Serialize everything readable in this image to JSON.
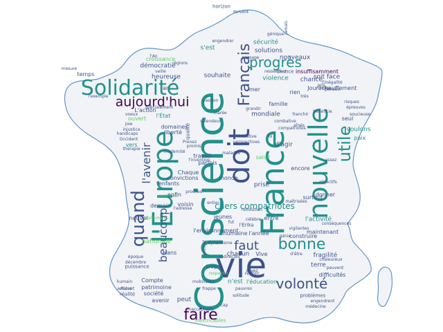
{
  "colors": {
    "background": "#ffffff",
    "map_fill": "#f2f3f6",
    "map_outline": "#5f95c9",
    "palette": [
      "#440154",
      "#3b528b",
      "#21918c",
      "#5ec962",
      "#fde725"
    ]
  },
  "words": [
    {
      "text": "Conscience",
      "color": "#21918c"
    },
    {
      "text": "France",
      "color": "#21918c"
    },
    {
      "text": "vie",
      "color": "#3b528b"
    },
    {
      "text": "doit",
      "color": "#3b528b"
    },
    {
      "text": "l'Europe",
      "color": "#21918c"
    },
    {
      "text": "nouvelle",
      "color": "#21918c"
    },
    {
      "text": "Solidarité",
      "color": "#21918c"
    },
    {
      "text": "quand",
      "color": "#3b528b"
    },
    {
      "text": "Français",
      "color": "#3b528b"
    },
    {
      "text": "utile",
      "color": "#21918c"
    },
    {
      "text": "bonne",
      "color": "#21918c"
    },
    {
      "text": "volonté",
      "color": "#3b528b"
    },
    {
      "text": "faire",
      "color": "#440154"
    },
    {
      "text": "aujourd'hui",
      "color": "#440154"
    },
    {
      "text": "progrès",
      "color": "#21918c"
    },
    {
      "text": "faut",
      "color": "#3b528b"
    },
    {
      "text": "l'avenir",
      "color": "#3b528b"
    },
    {
      "text": "beaucoup",
      "color": "#3b528b"
    },
    {
      "text": "chers compatriotes",
      "color": "#21918c"
    },
    {
      "text": "solutions",
      "color": "#3b528b"
    },
    {
      "text": "démocratie",
      "color": "#3b528b"
    },
    {
      "text": "heureuse",
      "color": "#3b528b"
    },
    {
      "text": "souhaite",
      "color": "#3b528b"
    },
    {
      "text": "sécurité",
      "color": "#21918c"
    },
    {
      "text": "s'est",
      "color": "#21918c"
    },
    {
      "text": "nouveaux",
      "color": "#3b528b"
    },
    {
      "text": "insuffisamment",
      "color": "#440154"
    },
    {
      "text": "violence",
      "color": "#21918c"
    },
    {
      "text": "chance",
      "color": "#3b528b"
    },
    {
      "text": "soit face",
      "color": "#3b528b"
    },
    {
      "text": "réchauffement",
      "color": "#3b528b"
    },
    {
      "text": "mondiale",
      "color": "#3b528b"
    },
    {
      "text": "famille",
      "color": "#3b528b"
    },
    {
      "text": "voulons",
      "color": "#21918c"
    },
    {
      "text": "paix",
      "color": "#21918c"
    },
    {
      "text": "seul",
      "color": "#3b528b"
    },
    {
      "text": "d'agir",
      "color": "#3b528b"
    },
    {
      "text": "encore",
      "color": "#3b528b"
    },
    {
      "text": "prise",
      "color": "#3b528b"
    },
    {
      "text": "surtout",
      "color": "#3b528b"
    },
    {
      "text": "donner",
      "color": "#3b528b"
    },
    {
      "text": "l'activité",
      "color": "#21918c"
    },
    {
      "text": "maintenant",
      "color": "#3b528b"
    },
    {
      "text": "construire",
      "color": "#3b528b"
    },
    {
      "text": "fragilité",
      "color": "#3b528b"
    },
    {
      "text": "terre",
      "color": "#3b528b"
    },
    {
      "text": "difficultés",
      "color": "#3b528b"
    },
    {
      "text": "n'est",
      "color": "#21918c"
    },
    {
      "text": "l'éducation",
      "color": "#21918c"
    },
    {
      "text": "chacun",
      "color": "#3b528b"
    },
    {
      "text": "humaine",
      "color": "#3b528b"
    },
    {
      "text": "l'année",
      "color": "#3b528b"
    },
    {
      "text": "jeunes",
      "color": "#3b528b"
    },
    {
      "text": "entre",
      "color": "#3b528b"
    },
    {
      "text": "nationale",
      "color": "#5ec962"
    },
    {
      "text": "sans",
      "color": "#3b528b"
    },
    {
      "text": "Compte",
      "color": "#3b528b"
    },
    {
      "text": "patrimoine",
      "color": "#3b528b"
    },
    {
      "text": "société",
      "color": "#3b528b"
    },
    {
      "text": "avenir",
      "color": "#3b528b"
    },
    {
      "text": "peut",
      "color": "#3b528b"
    },
    {
      "text": "nouvel",
      "color": "#3b528b"
    },
    {
      "text": "demain",
      "color": "#3b528b"
    },
    {
      "text": "voisin",
      "color": "#3b528b"
    },
    {
      "text": "l'environnement",
      "color": "#3b528b"
    },
    {
      "text": "monde",
      "color": "#3b528b"
    },
    {
      "text": "convictions",
      "color": "#3b528b"
    },
    {
      "text": "Chaque",
      "color": "#3b528b"
    },
    {
      "text": "enfants",
      "color": "#3b528b"
    },
    {
      "text": "travail",
      "color": "#3b528b"
    },
    {
      "text": "parfois",
      "color": "#3b528b"
    },
    {
      "text": "domaines",
      "color": "#3b528b"
    },
    {
      "text": "liberté",
      "color": "#3b528b"
    },
    {
      "text": "l'État",
      "color": "#21918c"
    },
    {
      "text": "L'action",
      "color": "#3b528b"
    },
    {
      "text": "ouvert",
      "color": "#5ec962"
    },
    {
      "text": "vers",
      "color": "#21918c"
    },
    {
      "text": "temps",
      "color": "#3b528b"
    },
    {
      "text": "horizon",
      "color": "#3b528b"
    },
    {
      "text": "mer",
      "color": "#3b528b"
    },
    {
      "text": "Jour",
      "color": "#3b528b"
    },
    {
      "text": "rien",
      "color": "#3b528b"
    },
    {
      "text": "qualité",
      "color": "#3b528b"
    },
    {
      "text": "saisir",
      "color": "#5ec962"
    },
    {
      "text": "chance",
      "color": "#3b528b"
    },
    {
      "text": "an",
      "color": "#3b528b"
    },
    {
      "text": "mesure",
      "color": "#3b528b"
    },
    {
      "text": "croissance",
      "color": "#5ec962"
    },
    {
      "text": "trop",
      "color": "#3b528b"
    },
    {
      "text": "rester",
      "color": "#3b528b"
    },
    {
      "text": "problèmes",
      "color": "#3b528b"
    },
    {
      "text": "engendrent",
      "color": "#3b528b"
    },
    {
      "text": "médecine",
      "color": "#3b528b"
    },
    {
      "text": "conséquences",
      "color": "#3b528b"
    },
    {
      "text": "respecter",
      "color": "#5ec962"
    },
    {
      "text": "l'Erika",
      "color": "#3b528b"
    },
    {
      "text": "mobilisées",
      "color": "#3b528b"
    },
    {
      "text": "Vive",
      "color": "#3b528b"
    },
    {
      "text": "décembre",
      "color": "#3b528b"
    },
    {
      "text": "puissance",
      "color": "#3b528b"
    },
    {
      "text": "époque",
      "color": "#3b528b"
    },
    {
      "text": "réalité",
      "color": "#3b528b"
    },
    {
      "text": "humain",
      "color": "#3b528b"
    },
    {
      "text": "actives",
      "color": "#3b528b"
    },
    {
      "text": "Autant",
      "color": "#3b528b"
    },
    {
      "text": "chaleureux",
      "color": "#3b528b"
    },
    {
      "text": "peuvent",
      "color": "#3b528b"
    },
    {
      "text": "l'adresse",
      "color": "#3b528b"
    },
    {
      "text": "proches",
      "color": "#3b528b"
    },
    {
      "text": "entier",
      "color": "#3b528b"
    },
    {
      "text": "engendrer",
      "color": "#3b528b"
    },
    {
      "text": "génique",
      "color": "#3b528b"
    },
    {
      "text": "grandir",
      "color": "#3b528b"
    },
    {
      "text": "franchir",
      "color": "#3b528b"
    },
    {
      "text": "bénéficie",
      "color": "#3b528b"
    },
    {
      "text": "épreuves",
      "color": "#3b528b"
    },
    {
      "text": "soucieuse",
      "color": "#3b528b"
    },
    {
      "text": "assez",
      "color": "#3b528b"
    },
    {
      "text": "risques",
      "color": "#3b528b"
    },
    {
      "text": "objectifs",
      "color": "#3b528b"
    },
    {
      "text": "maîtrisées",
      "color": "#3b528b"
    },
    {
      "text": "vigilantes",
      "color": "#3b528b"
    },
    {
      "text": "génie",
      "color": "#3b528b"
    },
    {
      "text": "d'être",
      "color": "#3b528b"
    },
    {
      "text": "dynamisme",
      "color": "#3b528b"
    },
    {
      "text": "frappe",
      "color": "#3b528b"
    },
    {
      "text": "pauvres",
      "color": "#3b528b"
    },
    {
      "text": "solitude",
      "color": "#3b528b"
    },
    {
      "text": "indirectes",
      "color": "#3b528b"
    },
    {
      "text": "passage",
      "color": "#3b528b"
    },
    {
      "text": "ressentent",
      "color": "#3b528b"
    },
    {
      "text": "l'inégalité",
      "color": "#3b528b"
    },
    {
      "text": "splendeur",
      "color": "#3b528b"
    },
    {
      "text": "handicaps",
      "color": "#3b528b"
    },
    {
      "text": "injustice",
      "color": "#3b528b"
    },
    {
      "text": "Occident",
      "color": "#3b528b"
    },
    {
      "text": "joie",
      "color": "#3b528b"
    },
    {
      "text": "régions",
      "color": "#3b528b"
    },
    {
      "text": "veille",
      "color": "#3b528b"
    },
    {
      "text": "l'An",
      "color": "#3b528b"
    },
    {
      "text": "l'exemple",
      "color": "#3b528b"
    },
    {
      "text": "modernité",
      "color": "#3b528b"
    },
    {
      "text": "Prenez",
      "color": "#3b528b"
    },
    {
      "text": "promis",
      "color": "#3b528b"
    },
    {
      "text": "perspectives",
      "color": "#3b528b"
    },
    {
      "text": "l'initiative",
      "color": "#3b528b"
    },
    {
      "text": "compatriotes",
      "color": "#3b528b"
    },
    {
      "text": "aînés",
      "color": "#3b528b"
    },
    {
      "text": "combative",
      "color": "#3b528b"
    },
    {
      "text": "marée",
      "color": "#3b528b"
    },
    {
      "text": "passion",
      "color": "#3b528b"
    },
    {
      "text": "jamais",
      "color": "#3b528b"
    },
    {
      "text": "doivent",
      "color": "#3b528b"
    },
    {
      "text": "pris",
      "color": "#3b528b"
    },
    {
      "text": "pensée",
      "color": "#3b528b"
    },
    {
      "text": "noire",
      "color": "#3b528b"
    },
    {
      "text": "très",
      "color": "#3b528b"
    },
    {
      "text": "malades",
      "color": "#3b528b"
    },
    {
      "text": "l'invention",
      "color": "#3b528b"
    },
    {
      "text": "célèbre",
      "color": "#3b528b"
    },
    {
      "text": "fut",
      "color": "#3b528b"
    },
    {
      "text": "cap",
      "color": "#3b528b"
    },
    {
      "text": "inacceptable",
      "color": "#3b528b"
    },
    {
      "text": "inextricables",
      "color": "#5ec962"
    },
    {
      "text": "thérapie",
      "color": "#3b528b"
    },
    {
      "text": "traitements",
      "color": "#5ec962"
    },
    {
      "text": "contrôlés",
      "color": "#5ec962"
    },
    {
      "text": "enfin",
      "color": "#3b528b"
    },
    {
      "text": "voeux",
      "color": "#3b528b"
    },
    {
      "text": "spécialement",
      "color": "#3b528b"
    },
    {
      "text": "révolution",
      "color": "#3b528b"
    },
    {
      "text": "permet",
      "color": "#3b528b"
    },
    {
      "text": "lui",
      "color": "#3b528b"
    },
    {
      "text": "soyez",
      "color": "#3b528b"
    }
  ]
}
